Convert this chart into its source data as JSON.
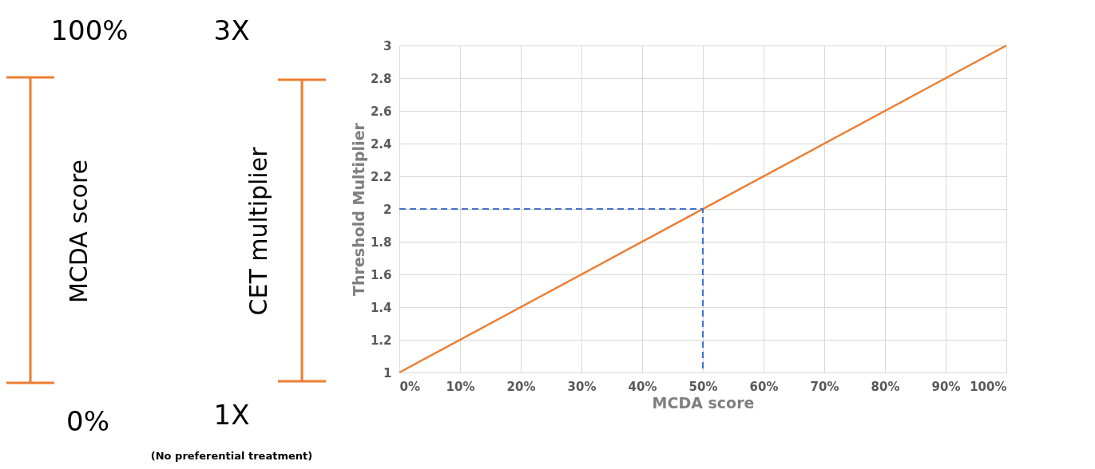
{
  "chart_data": [
    {
      "type": "other",
      "annotations": [
        "100%",
        "3X",
        "MCDA score",
        "CET multiplier",
        "0%",
        "1X",
        "(No preferential treatment)"
      ]
    },
    {
      "type": "line",
      "xlabel": "MCDA score",
      "ylabel": "Threshold Multiplier",
      "xlim": [
        0,
        100
      ],
      "ylim": [
        1,
        3
      ],
      "xticks": [
        {
          "value": 0,
          "label": "0%"
        },
        {
          "value": 10,
          "label": "10%"
        },
        {
          "value": 20,
          "label": "20%"
        },
        {
          "value": 30,
          "label": "30%"
        },
        {
          "value": 40,
          "label": "40%"
        },
        {
          "value": 50,
          "label": "50%"
        },
        {
          "value": 60,
          "label": "60%"
        },
        {
          "value": 70,
          "label": "70%"
        },
        {
          "value": 80,
          "label": "80%"
        },
        {
          "value": 90,
          "label": "90%"
        },
        {
          "value": 100,
          "label": "100%"
        }
      ],
      "yticks": [
        1,
        1.2,
        1.4,
        1.6,
        1.8,
        2,
        2.2,
        2.4,
        2.6,
        2.8,
        3
      ],
      "grid": true,
      "series": [
        {
          "x": [
            0,
            100
          ],
          "values": [
            1,
            3
          ],
          "color": "#ed7d31",
          "line_style": "solid"
        },
        {
          "x": [
            0,
            50,
            50
          ],
          "values": [
            2,
            2,
            1
          ],
          "color": "#4472c4",
          "line_style": "dashed"
        }
      ]
    }
  ]
}
